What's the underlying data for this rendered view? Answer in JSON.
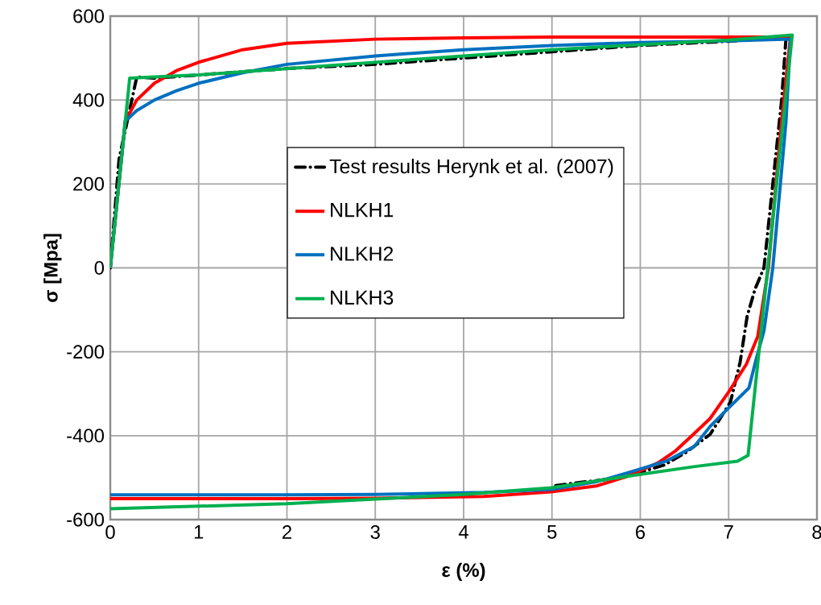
{
  "chart_data": {
    "type": "line",
    "xlabel": "ε (%)",
    "ylabel": "σ [Mpa]",
    "xlim": [
      0,
      8
    ],
    "ylim": [
      -600,
      600
    ],
    "xticks": [
      0,
      1,
      2,
      3,
      4,
      5,
      6,
      7,
      8
    ],
    "yticks": [
      -600,
      -400,
      -200,
      0,
      200,
      400,
      600
    ],
    "grid": true,
    "legend": "center",
    "marker": "none",
    "series": [
      {
        "name": "Test results Herynk et al. (2007)",
        "color": "#000000",
        "line_style": "dashed",
        "x": [
          0,
          0.1,
          0.22,
          0.3,
          0.5,
          1,
          2,
          3,
          4,
          5,
          6,
          7,
          7.65,
          7.6,
          7.5,
          7.4,
          7.3,
          7.21,
          7.13,
          7.02,
          6.79,
          6.51,
          6.27,
          5.8,
          5.29,
          5.0
        ],
        "values": [
          0,
          260,
          null,
          455,
          452,
          null,
          475,
          485,
          500,
          515,
          530,
          540,
          550,
          400,
          200,
          0,
          -50,
          -115,
          -225,
          -320,
          -397,
          -441,
          -470,
          -500,
          -512,
          -520
        ]
      },
      {
        "name": "NLKH1",
        "color": "#ff0000",
        "line_style": "solid",
        "x": [
          0,
          0.17,
          0.3,
          0.5,
          0.75,
          1,
          1.5,
          2,
          3,
          4,
          5,
          7.7,
          7.6,
          7.45,
          7.33,
          7.2,
          7.0,
          6.79,
          6.6,
          6.4,
          6.2,
          5.85,
          5.5,
          4.99,
          4.23,
          3,
          2,
          0
        ],
        "values": [
          0,
          350,
          400,
          440,
          470,
          490,
          520,
          535,
          545,
          548,
          550,
          550,
          350,
          0,
          -163,
          -230,
          -296,
          -359,
          -397,
          -436,
          -465,
          -497,
          -520,
          -534,
          -545,
          -549,
          -550,
          -550
        ]
      },
      {
        "name": "NLKH2",
        "color": "#0070c0",
        "line_style": "solid",
        "x": [
          0,
          0.17,
          0.3,
          0.5,
          0.75,
          1,
          1.5,
          2,
          3,
          4,
          5,
          6,
          7,
          7.7,
          7.65,
          7.5,
          7.4,
          7.31,
          7.23,
          6.97,
          6.79,
          6.61,
          6.3,
          5.85,
          5.5,
          4.99,
          4.23,
          3,
          2,
          0
        ],
        "values": [
          0,
          350,
          375,
          400,
          422,
          440,
          465,
          485,
          505,
          520,
          530,
          537,
          541,
          545,
          350,
          0,
          -150,
          -219,
          -286,
          -340,
          -378,
          -426,
          -460,
          -489,
          -510,
          -528,
          -535,
          -540,
          -541,
          -541
        ]
      },
      {
        "name": "NLKH3",
        "color": "#00b050",
        "line_style": "solid",
        "x": [
          0,
          0.22,
          0.5,
          1,
          5,
          6,
          7,
          7.72,
          7.22,
          7.1,
          6.6,
          5.85,
          4.99,
          4,
          3,
          2,
          0
        ],
        "values": [
          0,
          452,
          455,
          460,
          520,
          532,
          543,
          555,
          -447,
          -461,
          -474,
          -497,
          -524,
          -540,
          -551,
          -562,
          -574
        ]
      }
    ]
  }
}
